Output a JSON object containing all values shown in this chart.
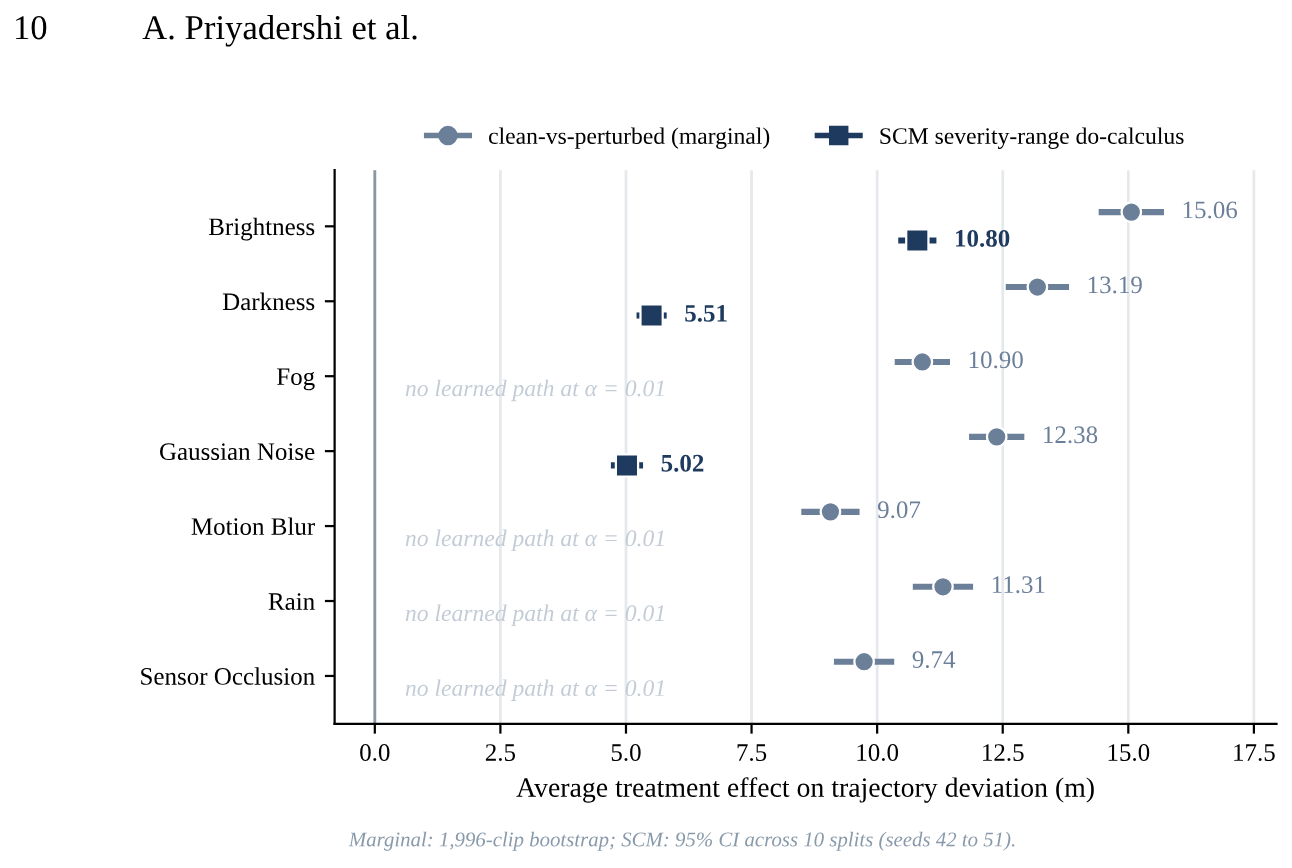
{
  "chart_data": {
    "type": "scatter",
    "orientation": "horizontal",
    "categories": [
      "Brightness",
      "Darkness",
      "Fog",
      "Gaussian Noise",
      "Motion Blur",
      "Rain",
      "Sensor Occlusion"
    ],
    "series": [
      {
        "name": "clean-vs-perturbed (marginal)",
        "color": "#6b7f99",
        "marker": "circle",
        "values": [
          15.06,
          13.19,
          10.9,
          12.38,
          9.07,
          11.31,
          9.74
        ],
        "errors": [
          0.65,
          0.63,
          0.55,
          0.55,
          0.58,
          0.6,
          0.6
        ],
        "value_labels": [
          "15.06",
          "13.19",
          "10.90",
          "12.38",
          "9.07",
          "11.31",
          "9.74"
        ]
      },
      {
        "name": "SCM severity-range do-calculus",
        "color": "#1f3a5f",
        "marker": "square",
        "values": [
          10.8,
          5.51,
          null,
          5.02,
          null,
          null,
          null
        ],
        "errors": [
          0.38,
          0.3,
          null,
          0.32,
          null,
          null,
          null
        ],
        "value_labels": [
          "10.80",
          "5.51",
          null,
          "5.02",
          null,
          null,
          null
        ]
      }
    ],
    "xlabel": "Average treatment effect on trajectory deviation (m)",
    "xlim": [
      -0.8,
      17.95
    ],
    "xticks": [
      {
        "value": 0,
        "label": "0.0"
      },
      2.5,
      {
        "value": 5,
        "label": "5.0"
      },
      7.5,
      {
        "value": 10,
        "label": "10.0"
      },
      12.5,
      {
        "value": 15,
        "label": "15.0"
      },
      17.5
    ],
    "grid": "x",
    "legend": "top",
    "ref_lines": [
      {
        "axis": "x",
        "value": 0,
        "label": null,
        "color": "#8a96a3"
      }
    ],
    "annotations": [
      "no learned path at α = 0.01",
      "no learned path at α = 0.01",
      "no learned path at α = 0.01",
      "no learned path at α = 0.01",
      "Marginal: 1,996-clip bootstrap; SCM: 95% CI across 10 splits (seeds 42 to 51).",
      "10",
      "A. Priyadershi et al."
    ]
  }
}
